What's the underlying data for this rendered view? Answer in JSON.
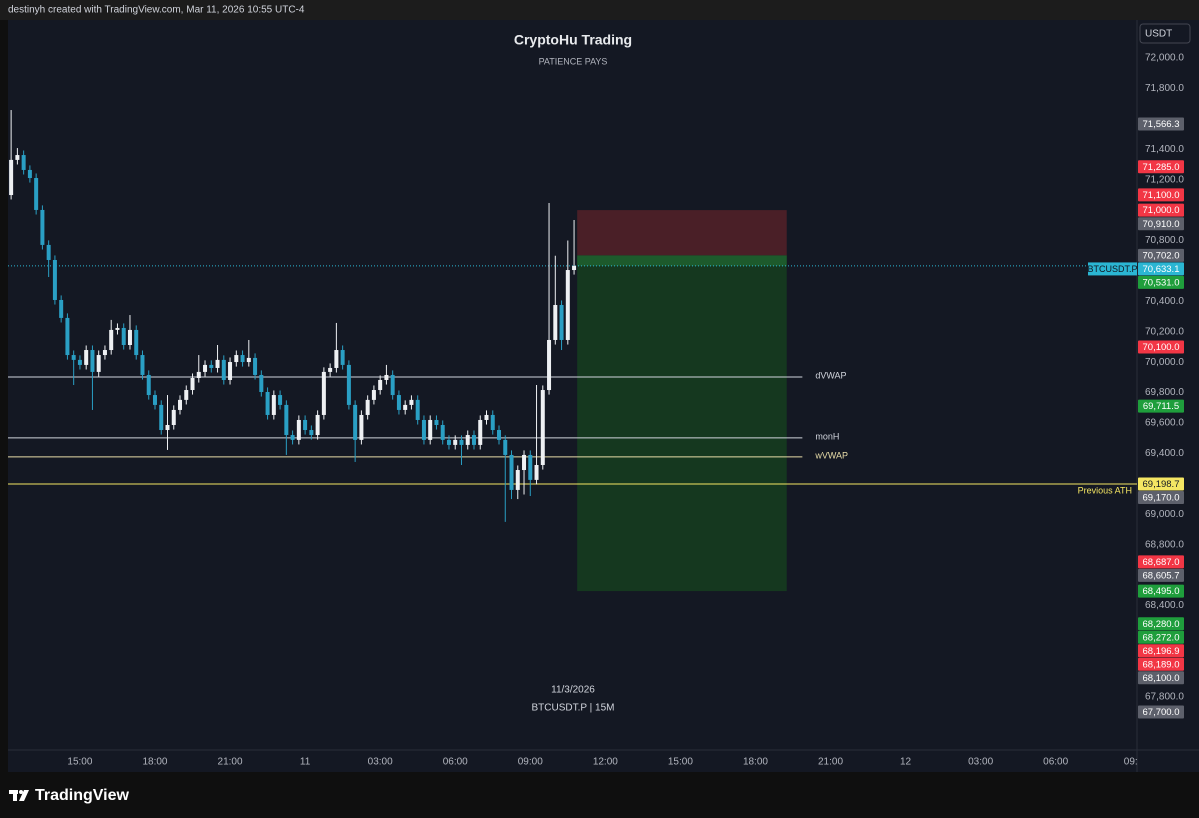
{
  "header": {
    "text": "destinyh created with TradingView.com, Mar 11, 2026 10:55 UTC-4"
  },
  "chart_data": {
    "type": "candlestick",
    "title": "CryptoHu Trading",
    "subtitle": "PATIENCE PAYS",
    "watermark": [
      "11/3/2026",
      "BTCUSDT.P | 15M"
    ],
    "currency": "USDT",
    "up_color": "#eef0f3",
    "down_color": "#2a9fc4",
    "ylim": [
      67450,
      72250
    ],
    "yticks": [
      {
        "value": 72000,
        "label": "72,000.0"
      },
      {
        "value": 71800,
        "label": "71,800.0"
      },
      {
        "value": 71400,
        "label": "71,400.0"
      },
      {
        "value": 71200,
        "label": "71,200.0"
      },
      {
        "value": 70800,
        "label": "70,800.0"
      },
      {
        "value": 70400,
        "label": "70,400.0"
      },
      {
        "value": 70200,
        "label": "70,200.0"
      },
      {
        "value": 70000,
        "label": "70,000.0"
      },
      {
        "value": 69800,
        "label": "69,800.0"
      },
      {
        "value": 69600,
        "label": "69,600.0"
      },
      {
        "value": 69400,
        "label": "69,400.0"
      },
      {
        "value": 69000,
        "label": "69,000.0"
      },
      {
        "value": 68800,
        "label": "68,800.0"
      },
      {
        "value": 68400,
        "label": "68,400.0"
      },
      {
        "value": 67800,
        "label": "67,800.0"
      }
    ],
    "xlim": [
      -0.5,
      180
    ],
    "xticks": [
      {
        "value": 11,
        "label": "15:00"
      },
      {
        "value": 23,
        "label": "18:00"
      },
      {
        "value": 35,
        "label": "21:00"
      },
      {
        "value": 47,
        "label": "11"
      },
      {
        "value": 59,
        "label": "03:00"
      },
      {
        "value": 71,
        "label": "06:00"
      },
      {
        "value": 83,
        "label": "09:00"
      },
      {
        "value": 95,
        "label": "12:00"
      },
      {
        "value": 107,
        "label": "15:00"
      },
      {
        "value": 119,
        "label": "18:00"
      },
      {
        "value": 131,
        "label": "21:00"
      },
      {
        "value": 143,
        "label": "12"
      },
      {
        "value": 155,
        "label": "03:00"
      },
      {
        "value": 167,
        "label": "06:00"
      },
      {
        "value": 179,
        "label": "09:"
      }
    ],
    "open": [
      71099,
      71330,
      71362,
      71264,
      71211,
      71001,
      70771,
      70672,
      70409,
      70291,
      70047,
      70015,
      69982,
      70080,
      69936,
      70047,
      70080,
      70212,
      70225,
      70113,
      70212,
      70047,
      69916,
      69784,
      69719,
      69554,
      69587,
      69686,
      69752,
      69817,
      69896,
      69936,
      69982,
      69962,
      70015,
      69883,
      70001,
      70047,
      70001,
      70028,
      69916,
      69804,
      69653,
      69784,
      69719,
      69521,
      69489,
      69620,
      69554,
      69521,
      69653,
      69936,
      69962,
      70080,
      69982,
      69719,
      69489,
      69653,
      69752,
      69817,
      69883,
      69916,
      69784,
      69686,
      69719,
      69752,
      69620,
      69489,
      69620,
      69587,
      69489,
      69456,
      69489,
      69456,
      69521,
      69456,
      69620,
      69653,
      69554,
      69489,
      69390,
      69160,
      69291,
      69390,
      69226,
      69324,
      69817,
      70146,
      70376,
      70146,
      70606
    ],
    "high": [
      71658,
      71408,
      71392,
      71294,
      71241,
      71031,
      70801,
      70702,
      70439,
      70321,
      70077,
      70045,
      70110,
      70110,
      70077,
      70110,
      70278,
      70255,
      70255,
      70310,
      70242,
      70077,
      69946,
      69814,
      69749,
      69784,
      69716,
      69782,
      69847,
      69926,
      70047,
      70012,
      70012,
      70113,
      70045,
      70031,
      70077,
      70077,
      70146,
      70058,
      69946,
      69834,
      69814,
      69814,
      69749,
      69551,
      69650,
      69650,
      69584,
      69683,
      69966,
      69992,
      70258,
      70110,
      70012,
      69749,
      69683,
      69782,
      69847,
      69913,
      69982,
      69946,
      69814,
      69749,
      69782,
      69782,
      69650,
      69650,
      69650,
      69617,
      69519,
      69519,
      69519,
      69551,
      69551,
      69650,
      69683,
      69683,
      69584,
      69519,
      69420,
      69321,
      69420,
      69420,
      69850,
      69847,
      71047,
      70700,
      70406,
      70800,
      70935
    ],
    "low": [
      71070,
      71300,
      71234,
      71181,
      70971,
      70741,
      70560,
      70379,
      70261,
      70017,
      69850,
      69952,
      69952,
      69686,
      69906,
      70017,
      70050,
      70182,
      70083,
      70083,
      70017,
      69886,
      69754,
      69689,
      69524,
      69423,
      69557,
      69656,
      69722,
      69787,
      69866,
      69906,
      69932,
      69932,
      69853,
      69853,
      69971,
      69971,
      69971,
      69886,
      69774,
      69623,
      69623,
      69689,
      69390,
      69459,
      69459,
      69524,
      69491,
      69491,
      69623,
      69906,
      69932,
      69952,
      69689,
      69344,
      69459,
      69623,
      69722,
      69787,
      69853,
      69754,
      69656,
      69656,
      69689,
      69590,
      69459,
      69459,
      69557,
      69459,
      69426,
      69426,
      69324,
      69426,
      69426,
      69426,
      69590,
      69524,
      69459,
      68950,
      69100,
      69100,
      69130,
      69120,
      69196,
      69294,
      69787,
      70116,
      70080,
      70116,
      70576
    ],
    "close": [
      71330,
      71362,
      71264,
      71211,
      71001,
      70771,
      70672,
      70409,
      70291,
      70047,
      70015,
      69982,
      70080,
      69936,
      70047,
      70080,
      70212,
      70225,
      70113,
      70212,
      70047,
      69916,
      69784,
      69719,
      69554,
      69587,
      69686,
      69752,
      69817,
      69896,
      69936,
      69982,
      69962,
      70015,
      69883,
      70001,
      70047,
      70001,
      70028,
      69916,
      69804,
      69653,
      69784,
      69719,
      69521,
      69489,
      69620,
      69554,
      69521,
      69653,
      69936,
      69962,
      70080,
      69982,
      69719,
      69489,
      69653,
      69752,
      69817,
      69883,
      69916,
      69784,
      69686,
      69719,
      69752,
      69620,
      69489,
      69620,
      69587,
      69489,
      69456,
      69489,
      69456,
      69521,
      69456,
      69620,
      69653,
      69554,
      69489,
      69390,
      69160,
      69291,
      69390,
      69226,
      69324,
      69817,
      70146,
      70376,
      70146,
      70606,
      70633.1
    ],
    "levels": [
      {
        "name": "dVWAP",
        "value": 69903,
        "color": "#d1d4dc",
        "x_end": 126.5
      },
      {
        "name": "monH",
        "value": 69502,
        "color": "#d1d4dc",
        "x_end": 126.5
      },
      {
        "name": "wVWAP",
        "value": 69377,
        "color": "#e8dca8",
        "x_end": 126.5
      },
      {
        "name": "Previous ATH",
        "value": 69198.7,
        "color": "#f5e663"
      }
    ],
    "position": {
      "stop": 71000,
      "entry": 70702,
      "target": 68495,
      "x_start": 90.5,
      "x_end": 124
    },
    "last_price": {
      "name": "BTCUSDT.P",
      "value": 70633.1,
      "label": "70,633.1",
      "color": "#2bb6d3"
    },
    "price_tags": [
      {
        "value": 71566.3,
        "label": "71,566.3",
        "color": "#5d606b"
      },
      {
        "value": 71285,
        "label": "71,285.0",
        "color": "#f23645"
      },
      {
        "value": 71100,
        "label": "71,100.0",
        "color": "#f23645"
      },
      {
        "value": 71000,
        "label": "71,000.0",
        "color": "#f23645"
      },
      {
        "value": 70910,
        "label": "70,910.0",
        "color": "#5d606b"
      },
      {
        "value": 70702,
        "label": "70,702.0",
        "color": "#5d606b"
      },
      {
        "value": 70531,
        "label": "70,531.0",
        "color": "#1f9e3c"
      },
      {
        "value": 70100,
        "label": "70,100.0",
        "color": "#f23645"
      },
      {
        "value": 69711.5,
        "label": "69,711.5",
        "color": "#1f9e3c"
      },
      {
        "value": 69198.7,
        "label": "69,198.7",
        "color": "#f5e663"
      },
      {
        "value": 69170,
        "label": "69,170.0",
        "color": "#5d606b"
      },
      {
        "value": 68687,
        "label": "68,687.0",
        "color": "#f23645"
      },
      {
        "value": 68605.7,
        "label": "68,605.7",
        "color": "#5d606b"
      },
      {
        "value": 68495,
        "label": "68,495.0",
        "color": "#1f9e3c"
      },
      {
        "value": 68280,
        "label": "68,280.0",
        "color": "#1f9e3c"
      },
      {
        "value": 68272,
        "label": "68,272.0",
        "color": "#1f9e3c"
      },
      {
        "value": 68196.9,
        "label": "68,196.9",
        "color": "#f23645"
      },
      {
        "value": 68189,
        "label": "68,189.0",
        "color": "#f23645"
      },
      {
        "value": 68100,
        "label": "68,100.0",
        "color": "#5d606b"
      },
      {
        "value": 67700,
        "label": "67,700.0",
        "color": "#5d606b"
      }
    ]
  },
  "footer": {
    "brand": "TradingView"
  }
}
